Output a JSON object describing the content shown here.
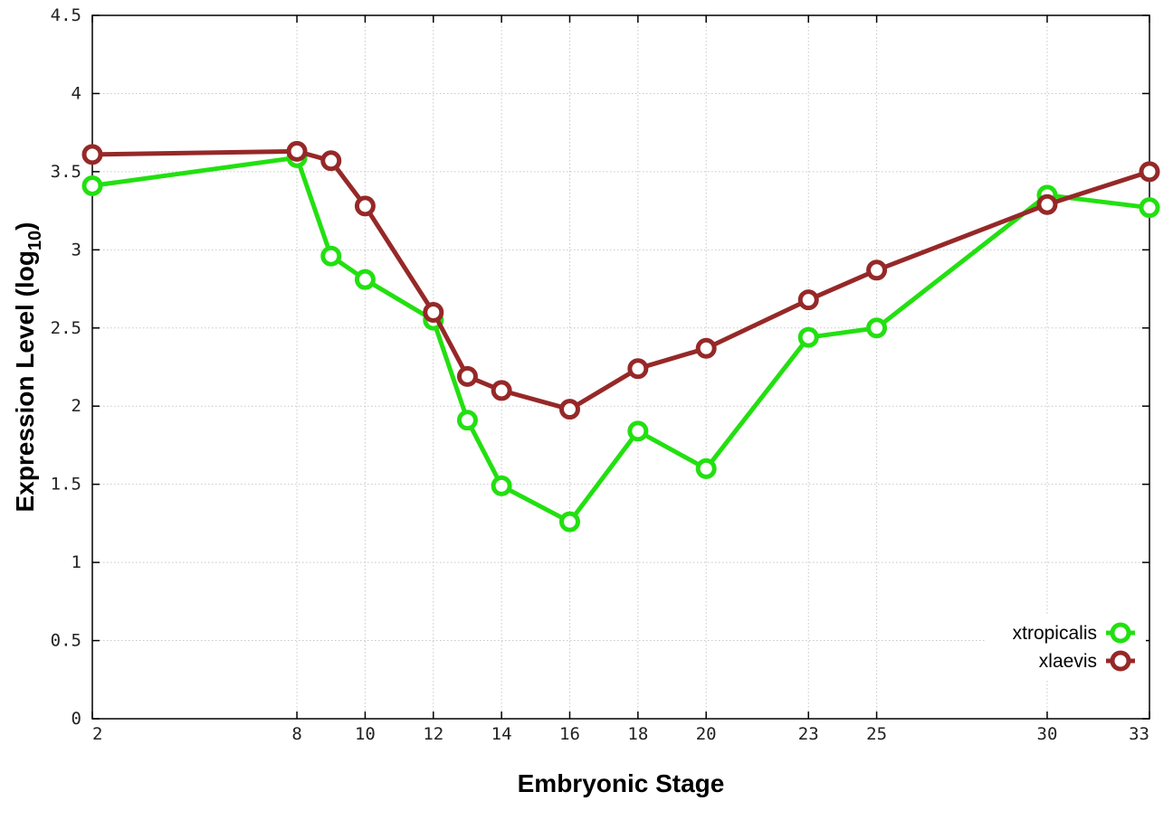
{
  "chart_data": {
    "type": "line",
    "title": "",
    "xlabel": "Embryonic Stage",
    "ylabel_main": "Expression Level (log",
    "ylabel_sub": "10",
    "ylabel_close": ")",
    "x": [
      2,
      8,
      9,
      10,
      12,
      13,
      14,
      16,
      18,
      20,
      23,
      25,
      30,
      33
    ],
    "xticks": [
      2,
      8,
      10,
      12,
      14,
      16,
      18,
      20,
      23,
      25,
      30,
      33
    ],
    "xtick_labels": [
      "2",
      "8",
      "10",
      "12",
      "14",
      "16",
      "18",
      "20",
      "23",
      "25",
      "30",
      "33"
    ],
    "yticks": [
      0,
      0.5,
      1,
      1.5,
      2,
      2.5,
      3,
      3.5,
      4,
      4.5
    ],
    "ytick_labels": [
      "0",
      "0.5",
      "1",
      "1.5",
      "2",
      "2.5",
      "3",
      "3.5",
      "4",
      "4.5"
    ],
    "xlim": [
      2,
      33
    ],
    "ylim": [
      0,
      4.5
    ],
    "grid": true,
    "legend_position": "bottom-right",
    "series": [
      {
        "name": "xtropicalis",
        "color": "#22e010",
        "values": [
          3.41,
          3.59,
          2.96,
          2.81,
          2.55,
          1.91,
          1.49,
          1.26,
          1.84,
          1.6,
          2.44,
          2.5,
          3.35,
          3.27
        ]
      },
      {
        "name": "xlaevis",
        "color": "#962828",
        "values": [
          3.61,
          3.63,
          3.57,
          3.28,
          2.6,
          2.19,
          2.1,
          1.98,
          2.24,
          2.37,
          2.68,
          2.87,
          3.29,
          3.5
        ]
      }
    ]
  }
}
